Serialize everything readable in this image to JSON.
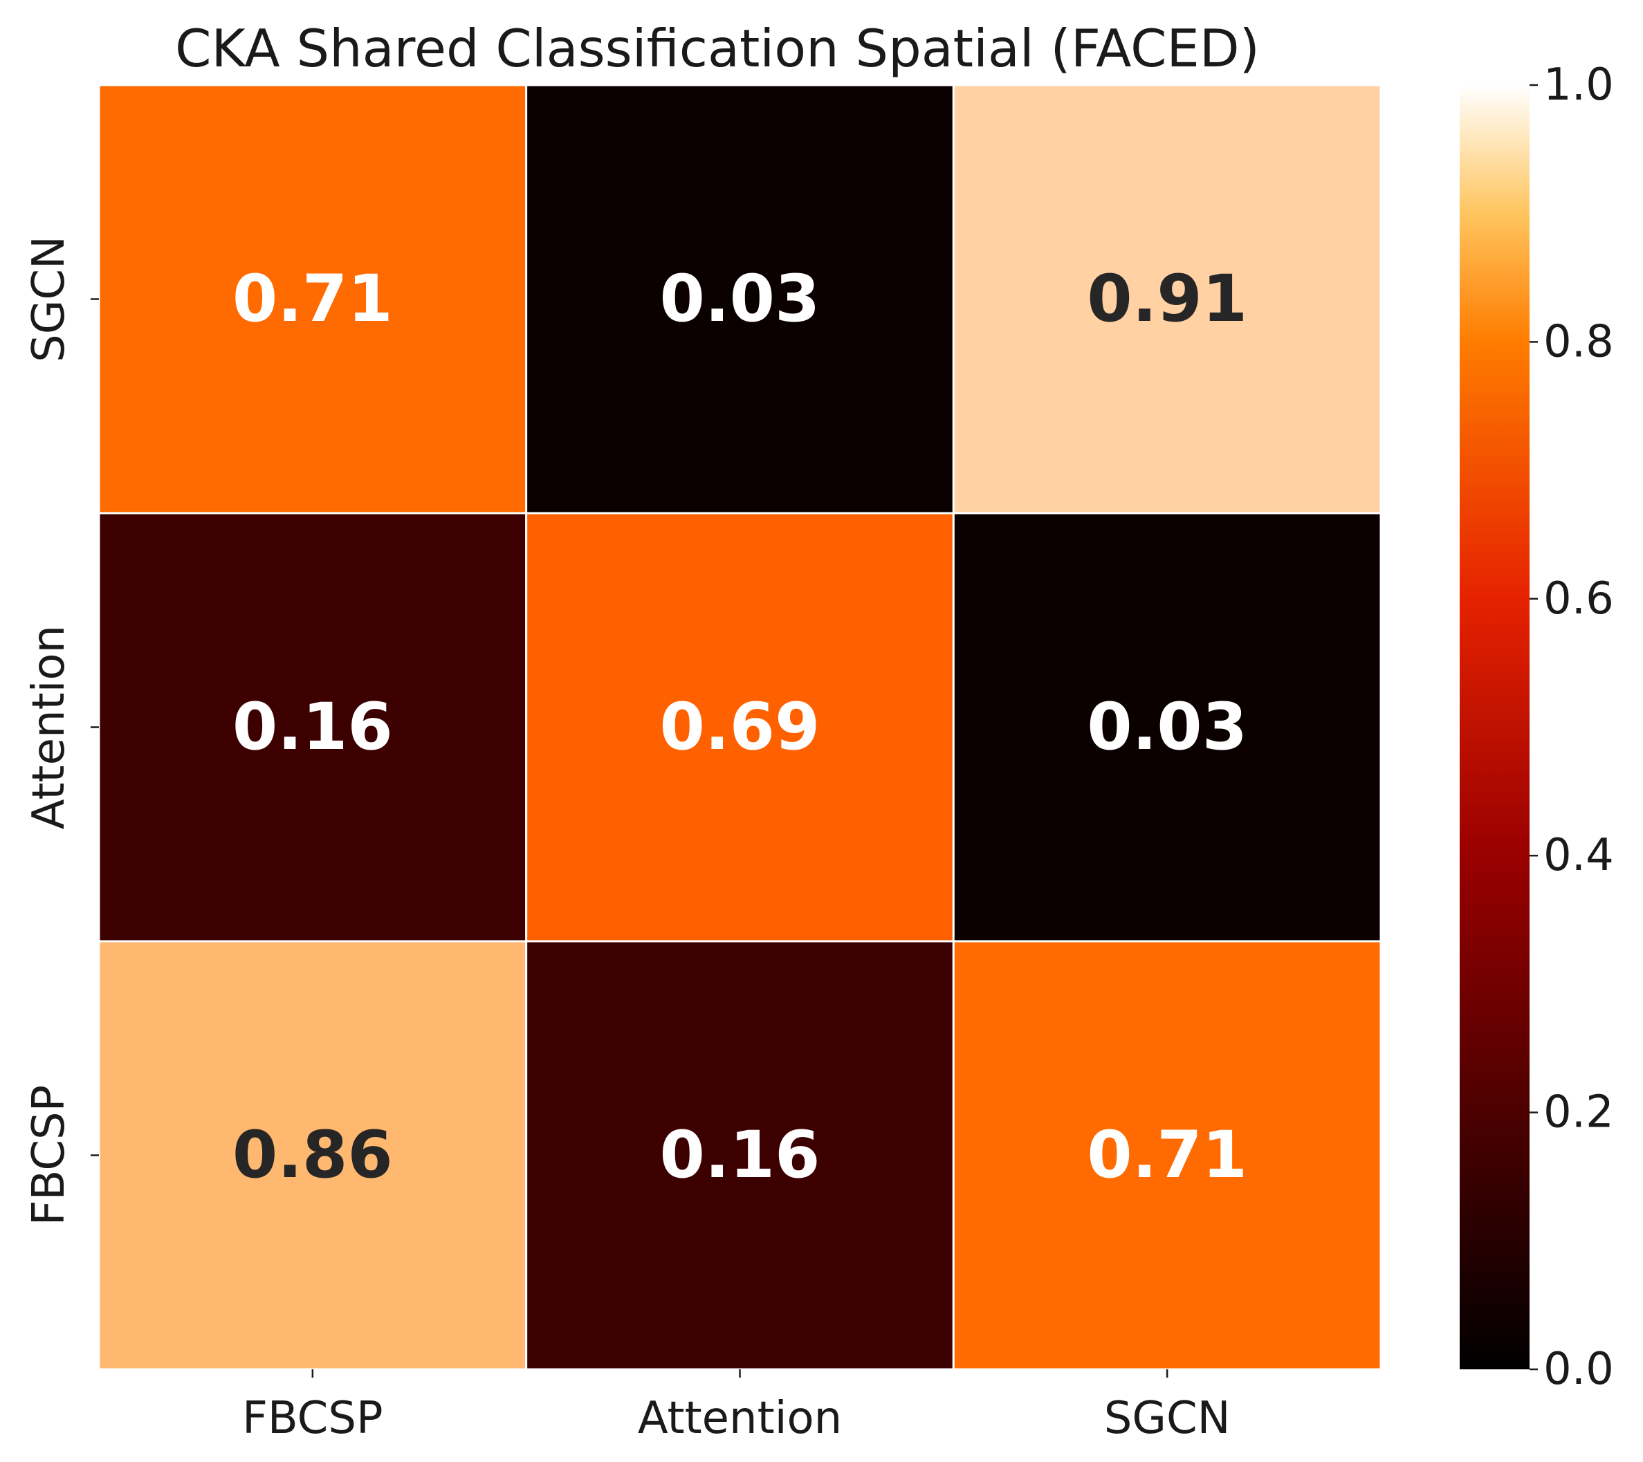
{
  "chart_data": {
    "type": "heatmap",
    "title": "CKA Shared Classification Spatial (FACED)",
    "xlabel": "",
    "ylabel": "",
    "x_categories": [
      "FBCSP",
      "Attention",
      "SGCN"
    ],
    "y_categories": [
      "SGCN",
      "Attention",
      "FBCSP"
    ],
    "values": [
      [
        0.71,
        0.03,
        0.91
      ],
      [
        0.16,
        0.69,
        0.03
      ],
      [
        0.86,
        0.16,
        0.71
      ]
    ],
    "colormap": "gist_heat",
    "vmin": 0.0,
    "vmax": 1.0,
    "colorbar_ticks": [
      "0.0",
      "0.2",
      "0.4",
      "0.6",
      "0.8",
      "1.0"
    ],
    "grid": false,
    "cell_border_color": "#ffffff",
    "annotation_dark_text_color": "#262626",
    "annotation_light_text_color": "#ffffff"
  }
}
